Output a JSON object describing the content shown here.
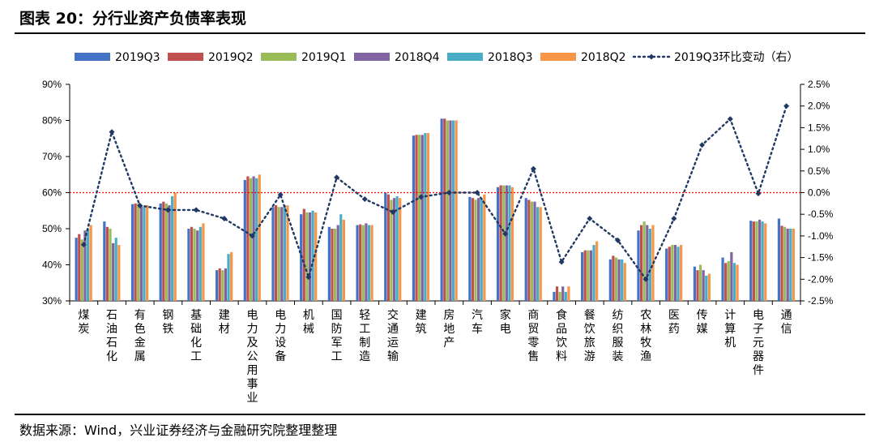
{
  "title": "图表 20：分行业资产负债率表现",
  "source": "数据来源：Wind，兴业证券经济与金融研究院整理整理",
  "chart_data": {
    "type": "bar",
    "categories": [
      "煤炭",
      "石油石化",
      "有色金属",
      "钢铁",
      "基础化工",
      "建材",
      "电力及公用事业",
      "电力设备",
      "机械",
      "国防军工",
      "轻工制造",
      "交通运输",
      "建筑",
      "房地产",
      "汽车",
      "家电",
      "商贸零售",
      "食品饮料",
      "餐饮旅游",
      "纺织服装",
      "农林牧渔",
      "医药",
      "传媒",
      "计算机",
      "电子元器件",
      "通信"
    ],
    "series": [
      {
        "name": "2019Q3",
        "color": "#4472C4",
        "values": [
          47.5,
          52.0,
          56.8,
          57.0,
          50.0,
          38.5,
          63.5,
          56.0,
          54.0,
          50.5,
          51.0,
          60.0,
          75.8,
          80.5,
          58.8,
          61.5,
          58.5,
          32.5,
          43.5,
          41.5,
          49.5,
          44.5,
          39.5,
          42.0,
          52.2,
          52.8
        ]
      },
      {
        "name": "2019Q2",
        "color": "#C0504D",
        "values": [
          48.5,
          50.5,
          57.0,
          57.5,
          50.5,
          39.0,
          64.5,
          56.5,
          55.5,
          50.0,
          51.2,
          59.5,
          76.0,
          80.5,
          58.5,
          62.0,
          58.0,
          34.0,
          44.0,
          42.5,
          51.0,
          45.0,
          38.5,
          40.5,
          52.0,
          50.8
        ]
      },
      {
        "name": "2019Q1",
        "color": "#9BBB59",
        "values": [
          47.0,
          50.0,
          57.0,
          57.0,
          50.0,
          38.5,
          64.0,
          56.0,
          54.5,
          50.0,
          51.0,
          58.0,
          76.0,
          80.0,
          58.0,
          62.0,
          57.5,
          32.5,
          44.0,
          42.0,
          52.0,
          45.5,
          40.0,
          41.0,
          52.0,
          50.5
        ]
      },
      {
        "name": "2018Q4",
        "color": "#8064A2",
        "values": [
          49.5,
          46.0,
          56.5,
          56.5,
          49.5,
          39.0,
          64.5,
          56.0,
          54.5,
          51.0,
          51.5,
          58.5,
          76.0,
          80.0,
          58.5,
          62.0,
          57.5,
          34.0,
          44.0,
          41.5,
          51.0,
          45.5,
          38.5,
          43.5,
          52.5,
          50.0
        ]
      },
      {
        "name": "2018Q3",
        "color": "#4BACC6",
        "values": [
          50.0,
          47.5,
          56.0,
          59.0,
          50.5,
          43.0,
          64.0,
          56.5,
          55.0,
          54.0,
          51.0,
          59.0,
          76.5,
          80.0,
          58.5,
          62.0,
          56.0,
          32.5,
          45.5,
          41.5,
          50.0,
          45.0,
          37.0,
          40.5,
          52.0,
          50.0
        ]
      },
      {
        "name": "2018Q2",
        "color": "#F79646",
        "values": [
          51.0,
          45.5,
          56.5,
          60.0,
          51.5,
          43.5,
          65.0,
          56.5,
          54.5,
          52.5,
          51.0,
          58.5,
          76.5,
          80.0,
          59.5,
          61.5,
          56.0,
          34.0,
          46.5,
          40.5,
          51.0,
          45.5,
          37.5,
          40.0,
          51.5,
          50.0
        ]
      }
    ],
    "line_series": {
      "name": "2019Q3环比变动（右）",
      "color": "#1F3864",
      "values": [
        -1.2,
        1.4,
        -0.3,
        -0.4,
        -0.4,
        -0.6,
        -1.0,
        -0.05,
        -1.95,
        0.35,
        -0.15,
        -0.45,
        -0.1,
        0.0,
        0.0,
        -0.95,
        0.55,
        -1.6,
        -0.6,
        -1.1,
        -2.0,
        -0.6,
        1.1,
        1.7,
        -0.02,
        2.0
      ]
    },
    "reference_line": {
      "axis": "right",
      "value": 0.0,
      "color": "#FF0000"
    },
    "y_left": {
      "min": 30,
      "max": 90,
      "step": 10,
      "unit": "%"
    },
    "y_right": {
      "min": -2.5,
      "max": 2.5,
      "step": 0.5,
      "unit": "%"
    },
    "legend_placement": "top"
  }
}
